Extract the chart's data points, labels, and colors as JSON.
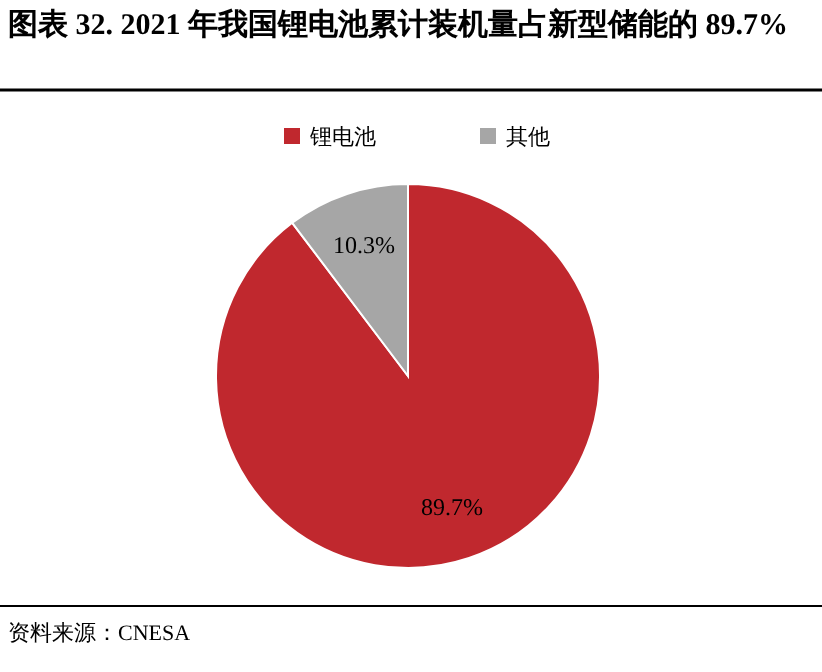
{
  "chart_data": {
    "type": "pie",
    "title": "图表 32. 2021 年我国锂电池累计装机量占新型储能的 89.7%",
    "categories": [
      "锂电池",
      "其他"
    ],
    "values": [
      89.7,
      10.3
    ],
    "colors": [
      "#c0282e",
      "#a6a6a6"
    ],
    "value_labels": [
      "89.7%",
      "10.3%"
    ],
    "legend": "top",
    "annotations": [
      "资料来源：CNESA"
    ]
  }
}
